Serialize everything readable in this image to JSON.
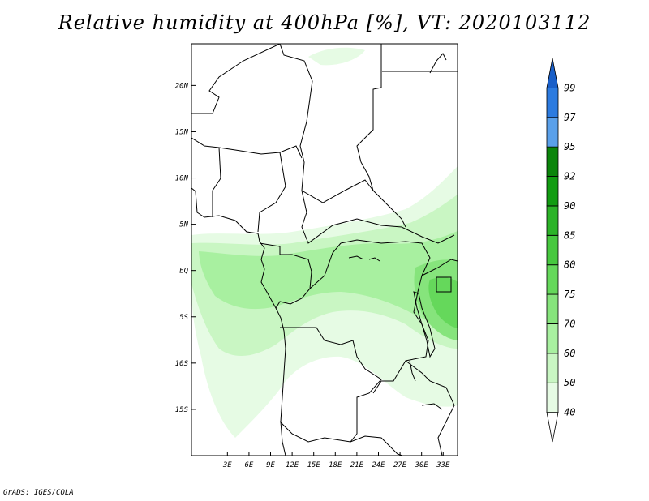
{
  "title": "Relative humidity at 400hPa [%], VT: 2020103112",
  "credit": "GrADS: IGES/COLA",
  "map": {
    "lon_range": [
      -2,
      35
    ],
    "lat_range": [
      -20,
      24.5
    ],
    "lon_ticks": [
      {
        "v": 3,
        "label": "3E"
      },
      {
        "v": 6,
        "label": "6E"
      },
      {
        "v": 9,
        "label": "9E"
      },
      {
        "v": 12,
        "label": "12E"
      },
      {
        "v": 15,
        "label": "15E"
      },
      {
        "v": 18,
        "label": "18E"
      },
      {
        "v": 21,
        "label": "21E"
      },
      {
        "v": 24,
        "label": "24E"
      },
      {
        "v": 27,
        "label": "27E"
      },
      {
        "v": 30,
        "label": "30E"
      },
      {
        "v": 33,
        "label": "33E"
      }
    ],
    "lat_ticks": [
      {
        "v": 20,
        "label": "20N"
      },
      {
        "v": 15,
        "label": "15N"
      },
      {
        "v": 10,
        "label": "10N"
      },
      {
        "v": 5,
        "label": "5N"
      },
      {
        "v": 0,
        "label": "EQ"
      },
      {
        "v": -5,
        "label": "5S"
      },
      {
        "v": -10,
        "label": "10S"
      },
      {
        "v": -15,
        "label": "15S"
      }
    ]
  },
  "colorbar": {
    "levels": [
      "40",
      "50",
      "60",
      "70",
      "75",
      "80",
      "85",
      "90",
      "92",
      "95",
      "97",
      "99"
    ],
    "colors": [
      "#ffffff",
      "#e6fbe4",
      "#c9f6c3",
      "#a8f0a0",
      "#86e47c",
      "#65d85b",
      "#47c83f",
      "#2cb328",
      "#129c12",
      "#0b850b",
      "#5aa0ea",
      "#2c7be0",
      "#1a5fc8"
    ]
  }
}
